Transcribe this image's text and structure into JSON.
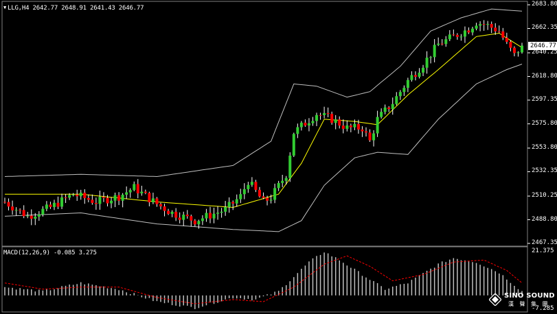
{
  "header": {
    "symbol": "LLG,H4",
    "open": "2642.77",
    "high": "2648.91",
    "low": "2641.43",
    "close": "2646.77"
  },
  "macd_header": "MACD(12,26,9) -0.085 3.275",
  "last_price_label": "2646.77",
  "brand": {
    "name": "SINO SOUND",
    "sub": "漢 聲 集 團"
  },
  "colors": {
    "background": "#000000",
    "up": "#32cd32",
    "down": "#ff0000",
    "bollinger": "#c0c0c0",
    "ma": "#ffff00",
    "macd_hist": "#c0c0c0",
    "macd_signal": "#ff0000"
  },
  "chart_data": [
    {
      "type": "candlestick",
      "title": "LLG,H4",
      "y_ticks": [
        "2683.80",
        "2662.35",
        "2640.25",
        "2618.80",
        "2597.35",
        "2575.80",
        "2553.80",
        "2532.35",
        "2510.25",
        "2488.80",
        "2467.35"
      ],
      "ylim": [
        2467.35,
        2683.8
      ],
      "grid": false,
      "anchors": [
        [
          0,
          2505
        ],
        [
          6,
          2492
        ],
        [
          12,
          2500
        ],
        [
          18,
          2512
        ],
        [
          24,
          2505
        ],
        [
          30,
          2510
        ],
        [
          34,
          2518
        ],
        [
          40,
          2503
        ],
        [
          44,
          2495
        ],
        [
          50,
          2488
        ],
        [
          54,
          2493
        ],
        [
          58,
          2498
        ],
        [
          62,
          2510
        ],
        [
          64,
          2524
        ],
        [
          68,
          2505
        ],
        [
          70,
          2509
        ],
        [
          74,
          2530
        ],
        [
          76,
          2568
        ],
        [
          82,
          2585
        ],
        [
          86,
          2580
        ],
        [
          90,
          2572
        ],
        [
          94,
          2572
        ],
        [
          96,
          2560
        ],
        [
          98,
          2580
        ],
        [
          102,
          2595
        ],
        [
          106,
          2615
        ],
        [
          110,
          2630
        ],
        [
          114,
          2648
        ],
        [
          118,
          2655
        ],
        [
          122,
          2662
        ],
        [
          124,
          2668
        ],
        [
          127,
          2665
        ],
        [
          130,
          2660
        ],
        [
          132,
          2648
        ],
        [
          134,
          2638
        ],
        [
          136,
          2646.77
        ]
      ],
      "bollinger_upper": [
        [
          0,
          2528
        ],
        [
          20,
          2530
        ],
        [
          40,
          2528
        ],
        [
          60,
          2538
        ],
        [
          70,
          2560
        ],
        [
          76,
          2612
        ],
        [
          82,
          2610
        ],
        [
          90,
          2600
        ],
        [
          96,
          2605
        ],
        [
          104,
          2628
        ],
        [
          112,
          2660
        ],
        [
          120,
          2672
        ],
        [
          128,
          2680
        ],
        [
          136,
          2678
        ]
      ],
      "bollinger_lower": [
        [
          0,
          2492
        ],
        [
          20,
          2495
        ],
        [
          40,
          2485
        ],
        [
          60,
          2480
        ],
        [
          72,
          2478
        ],
        [
          78,
          2488
        ],
        [
          84,
          2520
        ],
        [
          92,
          2545
        ],
        [
          98,
          2550
        ],
        [
          106,
          2548
        ],
        [
          114,
          2580
        ],
        [
          124,
          2612
        ],
        [
          132,
          2625
        ],
        [
          136,
          2630
        ]
      ],
      "ma": [
        [
          0,
          2512
        ],
        [
          20,
          2512
        ],
        [
          40,
          2505
        ],
        [
          60,
          2500
        ],
        [
          72,
          2512
        ],
        [
          78,
          2540
        ],
        [
          84,
          2580
        ],
        [
          92,
          2578
        ],
        [
          98,
          2575
        ],
        [
          106,
          2602
        ],
        [
          114,
          2625
        ],
        [
          124,
          2655
        ],
        [
          130,
          2658
        ],
        [
          136,
          2645
        ]
      ]
    },
    {
      "type": "macd",
      "title": "MACD(12,26,9) -0.085 3.275",
      "y_ticks": [
        "21.375",
        "-7.285"
      ],
      "ylim": [
        -7.285,
        21.375
      ],
      "histogram_anchors": [
        [
          0,
          4
        ],
        [
          10,
          2
        ],
        [
          20,
          6
        ],
        [
          30,
          3
        ],
        [
          40,
          -3
        ],
        [
          50,
          -6
        ],
        [
          60,
          -1
        ],
        [
          66,
          -2
        ],
        [
          72,
          2
        ],
        [
          80,
          16
        ],
        [
          84,
          21
        ],
        [
          88,
          17
        ],
        [
          94,
          10
        ],
        [
          100,
          3
        ],
        [
          106,
          6
        ],
        [
          114,
          15
        ],
        [
          118,
          18
        ],
        [
          124,
          16
        ],
        [
          130,
          11
        ],
        [
          136,
          2
        ]
      ],
      "signal_anchors": [
        [
          0,
          6
        ],
        [
          10,
          3
        ],
        [
          20,
          4
        ],
        [
          30,
          4
        ],
        [
          40,
          -1
        ],
        [
          50,
          -4
        ],
        [
          60,
          -2
        ],
        [
          68,
          -3
        ],
        [
          76,
          4
        ],
        [
          84,
          15
        ],
        [
          90,
          19
        ],
        [
          96,
          14
        ],
        [
          102,
          7
        ],
        [
          110,
          10
        ],
        [
          118,
          16
        ],
        [
          126,
          17
        ],
        [
          132,
          12
        ],
        [
          136,
          6
        ]
      ]
    }
  ]
}
